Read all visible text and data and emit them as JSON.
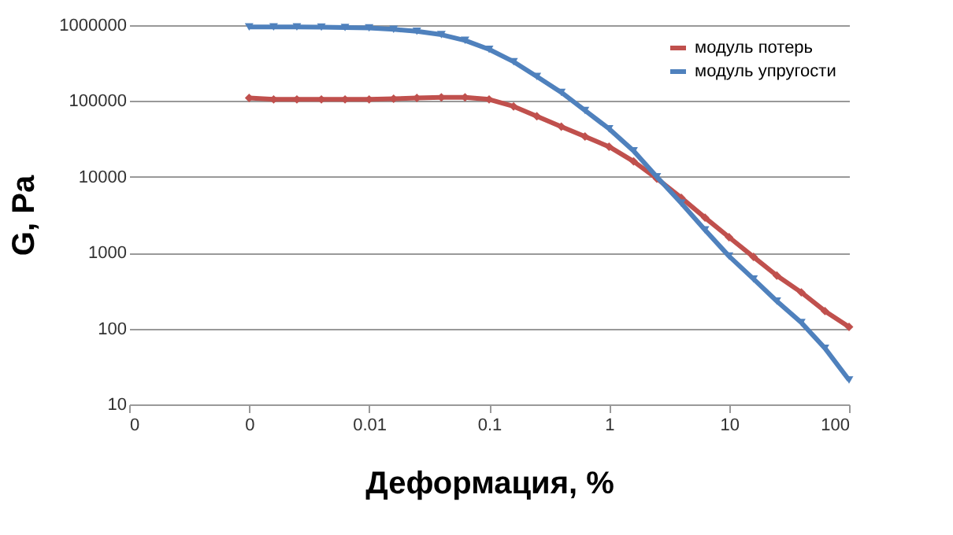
{
  "chart_data": {
    "type": "line",
    "xlabel": "Деформация, %",
    "ylabel": "G, Pa",
    "x": [
      0.001,
      0.0016,
      0.0025,
      0.004,
      0.0063,
      0.01,
      0.016,
      0.025,
      0.04,
      0.063,
      0.1,
      0.16,
      0.25,
      0.4,
      0.63,
      1,
      1.6,
      2.5,
      4,
      6.3,
      10,
      16,
      25,
      40,
      63,
      100
    ],
    "series": [
      {
        "name": "модуль потерь",
        "color": "#c0504d",
        "marker": "diamond",
        "values": [
          110000,
          105000,
          105000,
          105000,
          105000,
          105000,
          107000,
          110000,
          112000,
          112000,
          105000,
          85000,
          63000,
          46000,
          34000,
          25000,
          16000,
          9500,
          5300,
          2900,
          1600,
          880,
          500,
          300,
          170,
          105
        ]
      },
      {
        "name": "модуль упругости",
        "color": "#4f81bd",
        "marker": "triangle",
        "values": [
          950000,
          950000,
          950000,
          940000,
          930000,
          920000,
          880000,
          830000,
          750000,
          630000,
          480000,
          330000,
          210000,
          130000,
          75000,
          43000,
          22000,
          10000,
          4500,
          2000,
          900,
          450,
          230,
          120,
          55,
          21
        ]
      }
    ],
    "log": "xy",
    "xlim": [
      0.0001,
      100
    ],
    "ylim": [
      10,
      1000000
    ],
    "xticks": [
      {
        "value": 0.0001,
        "label": "0"
      },
      {
        "value": 0.001,
        "label": "0"
      },
      0.01,
      0.1,
      1,
      10,
      100
    ],
    "yticks": [
      10,
      100,
      1000,
      10000,
      100000,
      1000000
    ],
    "grid": "y",
    "legend": "top right",
    "line_style": "solid"
  }
}
